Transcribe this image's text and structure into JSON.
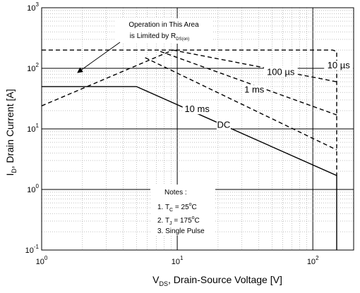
{
  "chart_data": {
    "type": "line",
    "x_scale": "log",
    "y_scale": "log",
    "xlim": [
      1,
      200
    ],
    "ylim": [
      0.1,
      1000
    ],
    "grid": true,
    "x_ticks": [
      {
        "base": "10",
        "exp": "0"
      },
      {
        "base": "10",
        "exp": "1"
      },
      {
        "base": "10",
        "exp": "2"
      }
    ],
    "y_ticks": [
      {
        "base": "10",
        "exp": "-1"
      },
      {
        "base": "10",
        "exp": "0"
      },
      {
        "base": "10",
        "exp": "1"
      },
      {
        "base": "10",
        "exp": "2"
      },
      {
        "base": "10",
        "exp": "3"
      }
    ],
    "xlabel": {
      "main": "V",
      "sub": "DS",
      "rest": ", Drain-Source Voltage [V]"
    },
    "ylabel": {
      "main": "I",
      "sub": "D",
      "rest": ", Drain Current [A]"
    },
    "series": [
      {
        "name": "DC",
        "style": "solid",
        "points": [
          [
            1,
            50
          ],
          [
            5,
            50
          ],
          [
            150,
            1.7
          ],
          [
            150,
            0.1
          ]
        ]
      },
      {
        "name": "10 ms",
        "style": "dashed",
        "points": [
          [
            5.8,
            150
          ],
          [
            150,
            4.5
          ]
        ]
      },
      {
        "name": "1 ms",
        "style": "dashed",
        "points": [
          [
            7.5,
            190
          ],
          [
            150,
            17
          ]
        ]
      },
      {
        "name": "100 µs",
        "style": "dashed",
        "points": [
          [
            9.3,
            200
          ],
          [
            150,
            60
          ]
        ]
      },
      {
        "name": "10 µs",
        "style": "dashed",
        "points": [
          [
            1,
            200
          ],
          [
            140,
            200
          ],
          [
            150,
            190
          ],
          [
            150,
            1.7
          ]
        ]
      }
    ],
    "rds_limit_line": {
      "style": "dashed",
      "points": [
        [
          1,
          24
        ],
        [
          9.3,
          200
        ]
      ]
    },
    "series_label_positions": [
      {
        "name": "DC",
        "x": 22,
        "y": 11
      },
      {
        "name": "10 ms",
        "x": 14,
        "y": 20
      },
      {
        "name": "1 ms",
        "x": 37,
        "y": 42
      },
      {
        "name": "100 µs",
        "x": 58,
        "y": 82
      },
      {
        "name": "10 µs",
        "x": 155,
        "y": 105
      }
    ],
    "annotation": {
      "line1": "Operation in This Area",
      "line2_main": "is Limited by R",
      "line2_sub": "DS(on)"
    },
    "notes": {
      "title": "Notes :",
      "items": [
        {
          "prefix": "1. T",
          "sub": "C",
          "value": " = 25",
          "sup": "o",
          "unit": "C"
        },
        {
          "prefix": "2. T",
          "sub": "J",
          "value": " = 175",
          "sup": "o",
          "unit": "C"
        },
        {
          "prefix": "3. Single Pulse",
          "sub": "",
          "value": "",
          "sup": "",
          "unit": ""
        }
      ]
    }
  }
}
